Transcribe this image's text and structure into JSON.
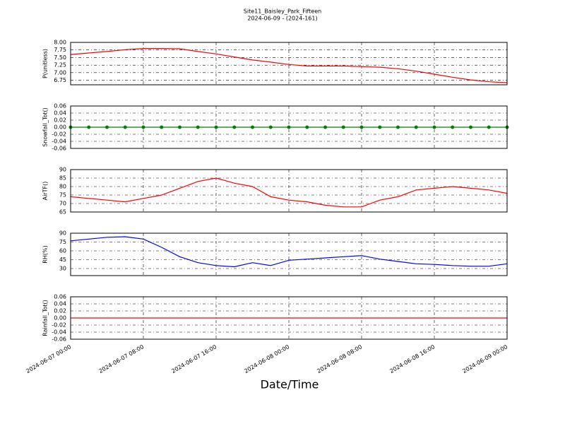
{
  "chart_data": [
    {
      "type": "line",
      "title": "Site11_Baisley_Park_Fifteen",
      "subtitle": "2024-06-09 - (2024-161)",
      "ylabel": "P(unitless)",
      "color": "#ff0000",
      "grid": true,
      "xlim": [
        "2024-06-07 00:00",
        "2024-06-09 00:00"
      ],
      "xticks": [
        "2024-06-07 00:00",
        "2024-06-07 08:00",
        "2024-06-07 16:00",
        "2024-06-08 00:00",
        "2024-06-08 08:00",
        "2024-06-08 16:00",
        "2024-06-09 00:00"
      ],
      "ylim": [
        6.6,
        8.0
      ],
      "yticks": [
        6.75,
        {
          "value": 7,
          "label": "7.00"
        },
        7.25,
        {
          "value": 7.5,
          "label": "7.50"
        },
        7.75,
        {
          "value": 8,
          "label": "8.00"
        }
      ],
      "x": [
        "2024-06-07 00:00",
        "2024-06-07 02:00",
        "2024-06-07 04:00",
        "2024-06-07 06:00",
        "2024-06-07 08:00",
        "2024-06-07 10:00",
        "2024-06-07 12:00",
        "2024-06-07 14:00",
        "2024-06-07 16:00",
        "2024-06-07 18:00",
        "2024-06-07 20:00",
        "2024-06-07 22:00",
        "2024-06-08 00:00",
        "2024-06-08 02:00",
        "2024-06-08 04:00",
        "2024-06-08 06:00",
        "2024-06-08 08:00",
        "2024-06-08 10:00",
        "2024-06-08 12:00",
        "2024-06-08 14:00",
        "2024-06-08 16:00",
        "2024-06-08 18:00",
        "2024-06-08 20:00",
        "2024-06-08 22:00",
        "2024-06-09 00:00"
      ],
      "values": [
        7.6,
        7.65,
        7.7,
        7.76,
        7.8,
        7.8,
        7.79,
        7.7,
        7.62,
        7.52,
        7.42,
        7.35,
        7.27,
        7.22,
        7.22,
        7.22,
        7.2,
        7.18,
        7.13,
        7.05,
        6.95,
        6.85,
        6.76,
        6.7,
        6.67
      ]
    },
    {
      "type": "line",
      "ylabel": "Snowfall_Tot()",
      "color": "#008000",
      "marker": true,
      "grid": true,
      "xlim": [
        "2024-06-07 00:00",
        "2024-06-09 00:00"
      ],
      "xticks": [
        "2024-06-07 00:00",
        "2024-06-07 08:00",
        "2024-06-07 16:00",
        "2024-06-08 00:00",
        "2024-06-08 08:00",
        "2024-06-08 16:00",
        "2024-06-09 00:00"
      ],
      "ylim": [
        -0.06,
        0.06
      ],
      "yticks": [
        -0.06,
        -0.04,
        -0.02,
        {
          "value": 0,
          "label": "0.00"
        },
        0.02,
        0.04,
        0.06
      ],
      "x": [
        "2024-06-07 00:00",
        "2024-06-07 02:00",
        "2024-06-07 04:00",
        "2024-06-07 06:00",
        "2024-06-07 08:00",
        "2024-06-07 10:00",
        "2024-06-07 12:00",
        "2024-06-07 14:00",
        "2024-06-07 16:00",
        "2024-06-07 18:00",
        "2024-06-07 20:00",
        "2024-06-07 22:00",
        "2024-06-08 00:00",
        "2024-06-08 02:00",
        "2024-06-08 04:00",
        "2024-06-08 06:00",
        "2024-06-08 08:00",
        "2024-06-08 10:00",
        "2024-06-08 12:00",
        "2024-06-08 14:00",
        "2024-06-08 16:00",
        "2024-06-08 18:00",
        "2024-06-08 20:00",
        "2024-06-08 22:00",
        "2024-06-09 00:00"
      ],
      "values": [
        0,
        0,
        0,
        0,
        0,
        0,
        0,
        0,
        0,
        0,
        0,
        0,
        0,
        0,
        0,
        0,
        0,
        0,
        0,
        0,
        0,
        0,
        0,
        0,
        0
      ]
    },
    {
      "type": "line",
      "ylabel": "AirTF()",
      "color": "#ff0000",
      "grid": true,
      "xlim": [
        "2024-06-07 00:00",
        "2024-06-09 00:00"
      ],
      "xticks": [
        "2024-06-07 00:00",
        "2024-06-07 08:00",
        "2024-06-07 16:00",
        "2024-06-08 00:00",
        "2024-06-08 08:00",
        "2024-06-08 16:00",
        "2024-06-09 00:00"
      ],
      "ylim": [
        65,
        90
      ],
      "yticks": [
        65,
        70,
        75,
        80,
        85,
        90
      ],
      "x": [
        "2024-06-07 00:00",
        "2024-06-07 02:00",
        "2024-06-07 04:00",
        "2024-06-07 06:00",
        "2024-06-07 08:00",
        "2024-06-07 10:00",
        "2024-06-07 12:00",
        "2024-06-07 14:00",
        "2024-06-07 16:00",
        "2024-06-07 18:00",
        "2024-06-07 20:00",
        "2024-06-07 22:00",
        "2024-06-08 00:00",
        "2024-06-08 02:00",
        "2024-06-08 04:00",
        "2024-06-08 06:00",
        "2024-06-08 08:00",
        "2024-06-08 10:00",
        "2024-06-08 12:00",
        "2024-06-08 14:00",
        "2024-06-08 16:00",
        "2024-06-08 18:00",
        "2024-06-08 20:00",
        "2024-06-08 22:00",
        "2024-06-09 00:00"
      ],
      "values": [
        74,
        73,
        72,
        71,
        73,
        75,
        79,
        83,
        85,
        82,
        80,
        74,
        72,
        71,
        69,
        68,
        68,
        72,
        74,
        78,
        79,
        80,
        79,
        78,
        76
      ]
    },
    {
      "type": "line",
      "ylabel": "RH(%)",
      "color": "#0000ff",
      "grid": true,
      "xlim": [
        "2024-06-07 00:00",
        "2024-06-09 00:00"
      ],
      "xticks": [
        "2024-06-07 00:00",
        "2024-06-07 08:00",
        "2024-06-07 16:00",
        "2024-06-08 00:00",
        "2024-06-08 08:00",
        "2024-06-08 16:00",
        "2024-06-09 00:00"
      ],
      "ylim": [
        18,
        90
      ],
      "yticks": [
        30,
        45,
        60,
        75,
        90
      ],
      "x": [
        "2024-06-07 00:00",
        "2024-06-07 02:00",
        "2024-06-07 04:00",
        "2024-06-07 06:00",
        "2024-06-07 08:00",
        "2024-06-07 10:00",
        "2024-06-07 12:00",
        "2024-06-07 14:00",
        "2024-06-07 16:00",
        "2024-06-07 18:00",
        "2024-06-07 20:00",
        "2024-06-07 22:00",
        "2024-06-08 00:00",
        "2024-06-08 02:00",
        "2024-06-08 04:00",
        "2024-06-08 06:00",
        "2024-06-08 08:00",
        "2024-06-08 10:00",
        "2024-06-08 12:00",
        "2024-06-08 14:00",
        "2024-06-08 16:00",
        "2024-06-08 18:00",
        "2024-06-08 20:00",
        "2024-06-08 22:00",
        "2024-06-09 00:00"
      ],
      "values": [
        77,
        80,
        83,
        84,
        80,
        66,
        50,
        40,
        35,
        33,
        40,
        35,
        44,
        46,
        48,
        50,
        52,
        46,
        42,
        38,
        37,
        35,
        34,
        34,
        38
      ]
    },
    {
      "type": "line",
      "ylabel": "Rainfall_Tot()",
      "xlabel": "Date/Time",
      "color": "#ff0000",
      "grid": true,
      "xlim": [
        "2024-06-07 00:00",
        "2024-06-09 00:00"
      ],
      "xticks": [
        "2024-06-07 00:00",
        "2024-06-07 08:00",
        "2024-06-07 16:00",
        "2024-06-08 00:00",
        "2024-06-08 08:00",
        "2024-06-08 16:00",
        "2024-06-09 00:00"
      ],
      "ylim": [
        -0.06,
        0.06
      ],
      "yticks": [
        -0.06,
        -0.04,
        -0.02,
        {
          "value": 0,
          "label": "0.00"
        },
        0.02,
        0.04,
        0.06
      ],
      "x": [
        "2024-06-07 00:00",
        "2024-06-07 02:00",
        "2024-06-07 04:00",
        "2024-06-07 06:00",
        "2024-06-07 08:00",
        "2024-06-07 10:00",
        "2024-06-07 12:00",
        "2024-06-07 14:00",
        "2024-06-07 16:00",
        "2024-06-07 18:00",
        "2024-06-07 20:00",
        "2024-06-07 22:00",
        "2024-06-08 00:00",
        "2024-06-08 02:00",
        "2024-06-08 04:00",
        "2024-06-08 06:00",
        "2024-06-08 08:00",
        "2024-06-08 10:00",
        "2024-06-08 12:00",
        "2024-06-08 14:00",
        "2024-06-08 16:00",
        "2024-06-08 18:00",
        "2024-06-08 20:00",
        "2024-06-08 22:00",
        "2024-06-09 00:00"
      ],
      "values": [
        0,
        0,
        0,
        0,
        0,
        0,
        0,
        0,
        0,
        0,
        0,
        0,
        0,
        0,
        0,
        0,
        0,
        0,
        0,
        0,
        0,
        0,
        0,
        0,
        0
      ]
    }
  ]
}
